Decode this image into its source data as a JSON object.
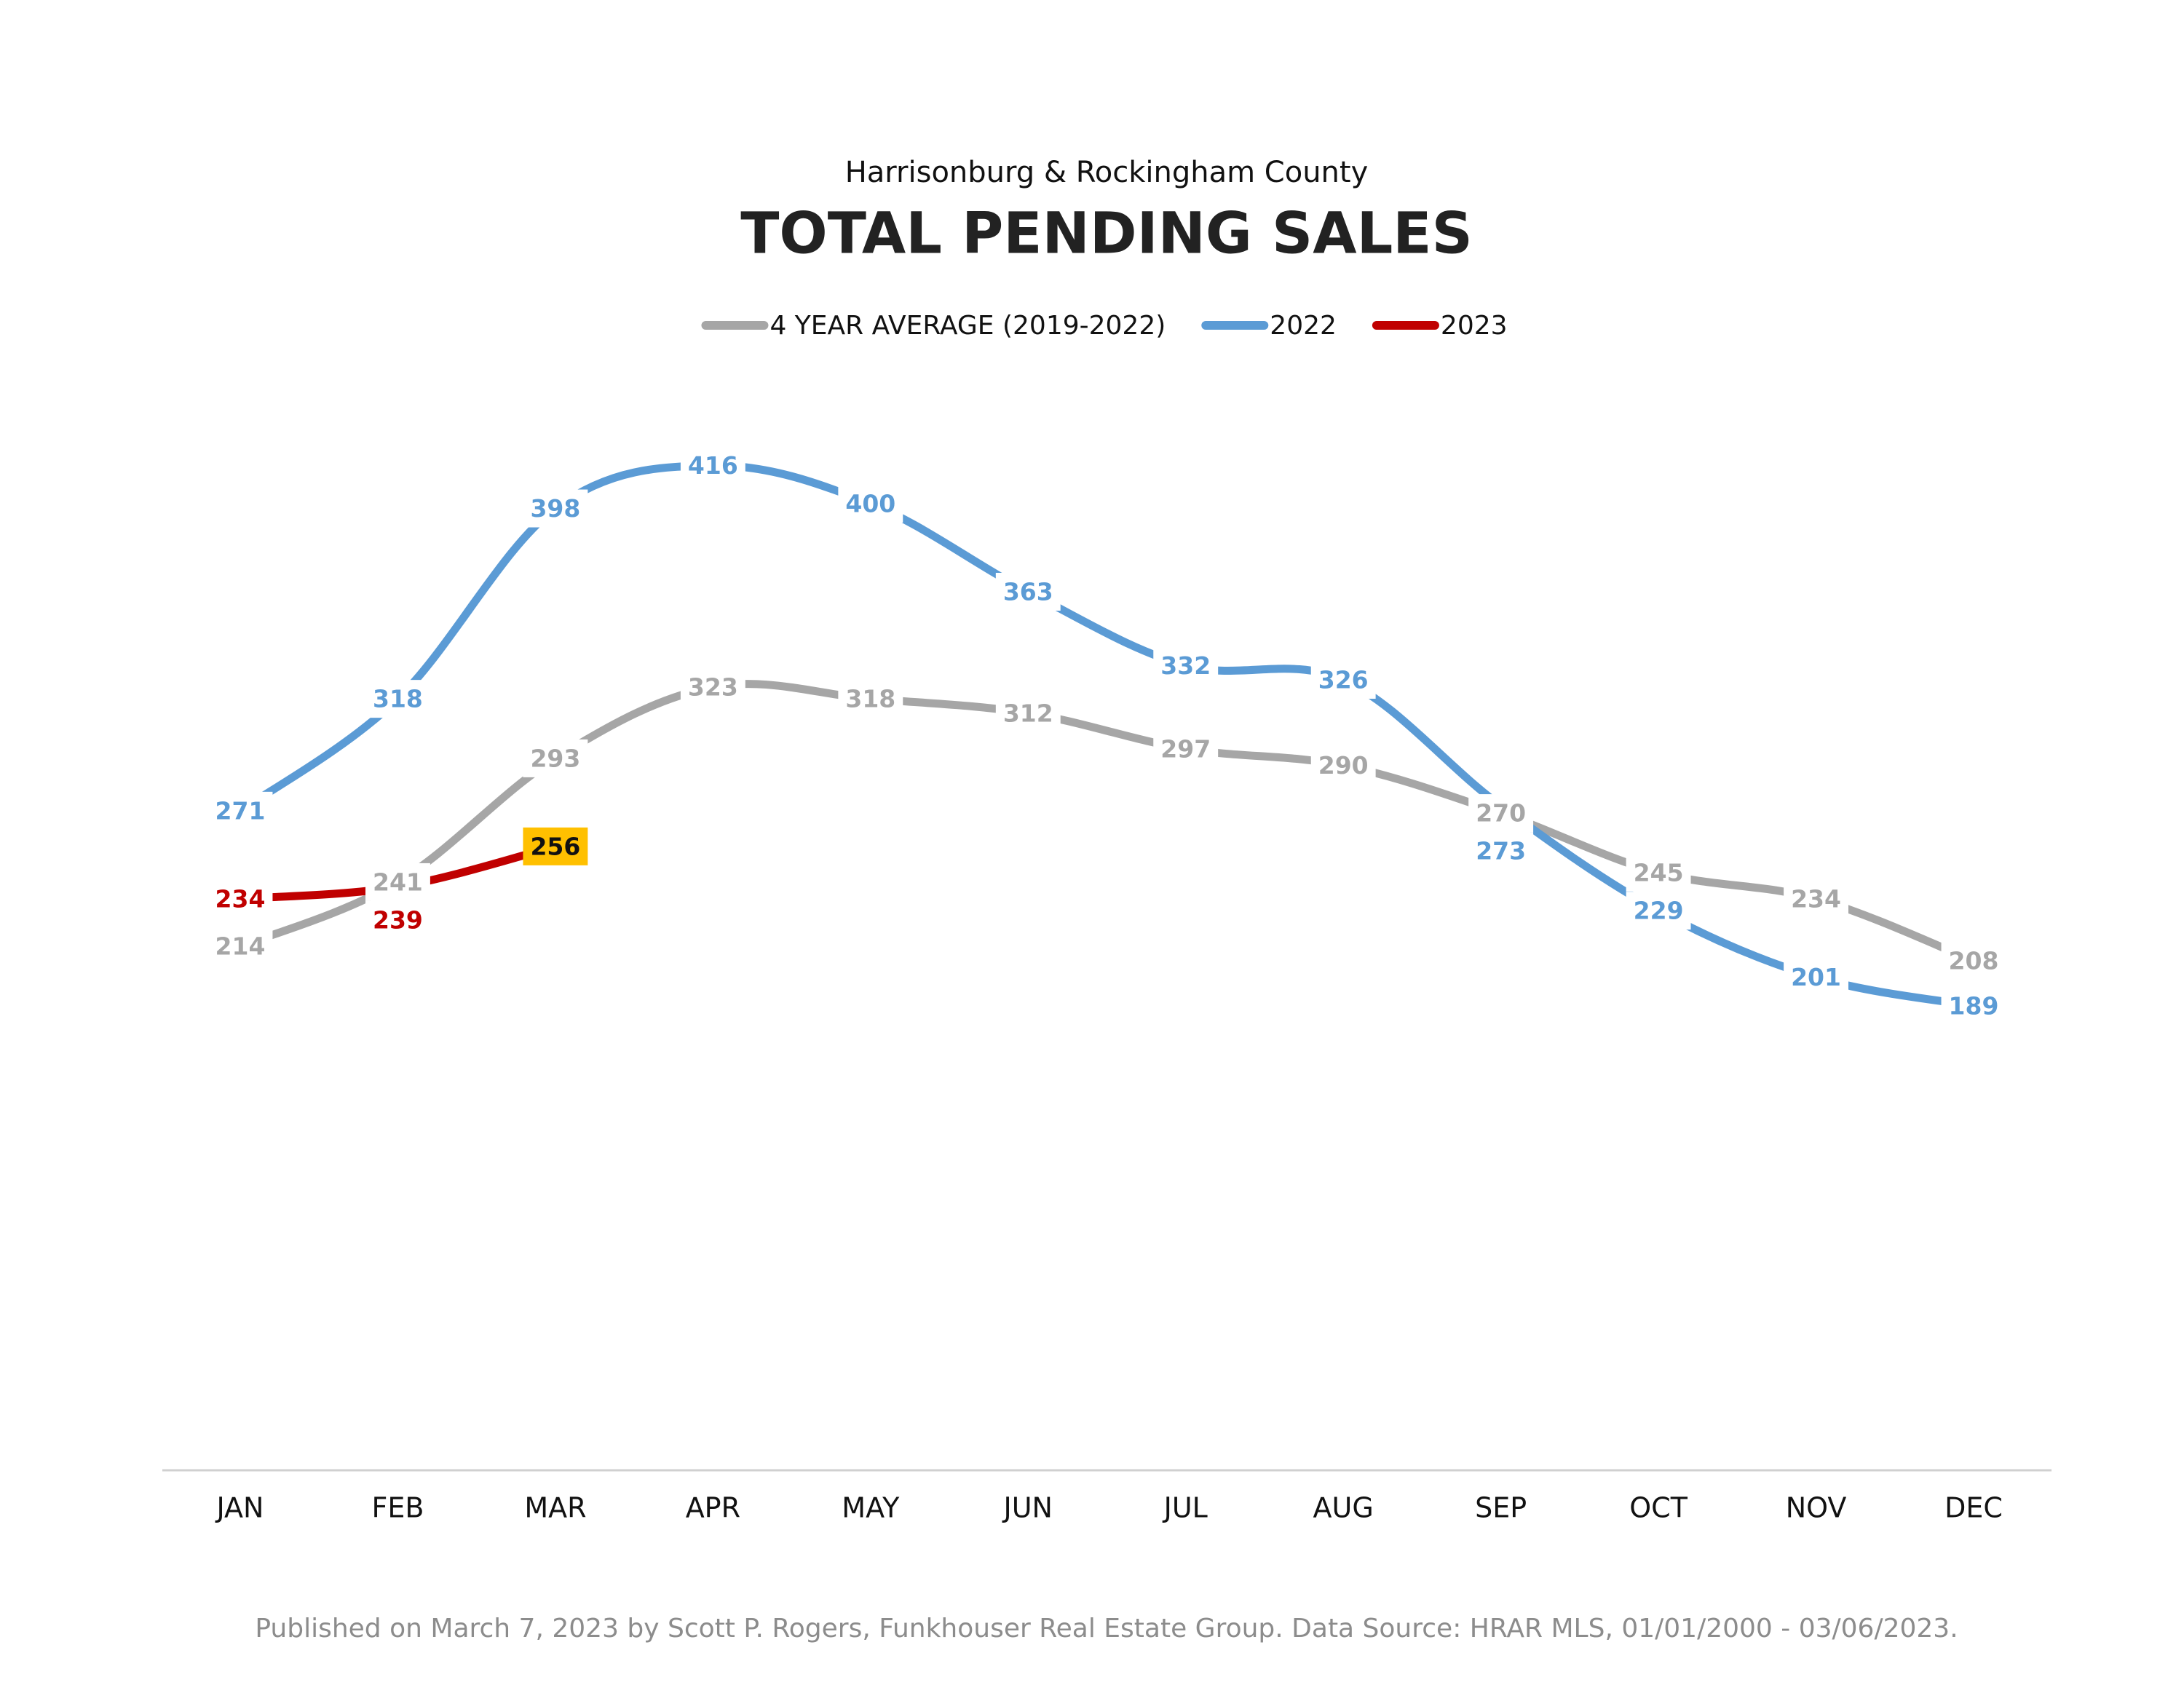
{
  "chart_data": {
    "type": "line",
    "subtitle": "Harrisonburg & Rockingham County",
    "title": "TOTAL PENDING SALES",
    "categories": [
      "JAN",
      "FEB",
      "MAR",
      "APR",
      "MAY",
      "JUN",
      "JUL",
      "AUG",
      "SEP",
      "OCT",
      "NOV",
      "DEC"
    ],
    "series": [
      {
        "name": "4 YEAR AVERAGE (2019-2022)",
        "color": "#a6a6a6",
        "values": [
          214,
          241,
          293,
          323,
          318,
          312,
          297,
          290,
          270,
          245,
          234,
          208
        ]
      },
      {
        "name": "2022",
        "color": "#5b9bd5",
        "values": [
          271,
          318,
          398,
          416,
          400,
          363,
          332,
          326,
          273,
          229,
          201,
          189
        ]
      },
      {
        "name": "2023",
        "color": "#c00000",
        "highlight_color": "#ffc000",
        "values": [
          234,
          239,
          256,
          null,
          null,
          null,
          null,
          null,
          null,
          null,
          null,
          null
        ]
      }
    ],
    "legend": "top",
    "footnote": "Published on March 7, 2023 by Scott P. Rogers, Funkhouser Real Estate Group. Data Source: HRAR MLS, 01/01/2000 - 03/06/2023."
  }
}
